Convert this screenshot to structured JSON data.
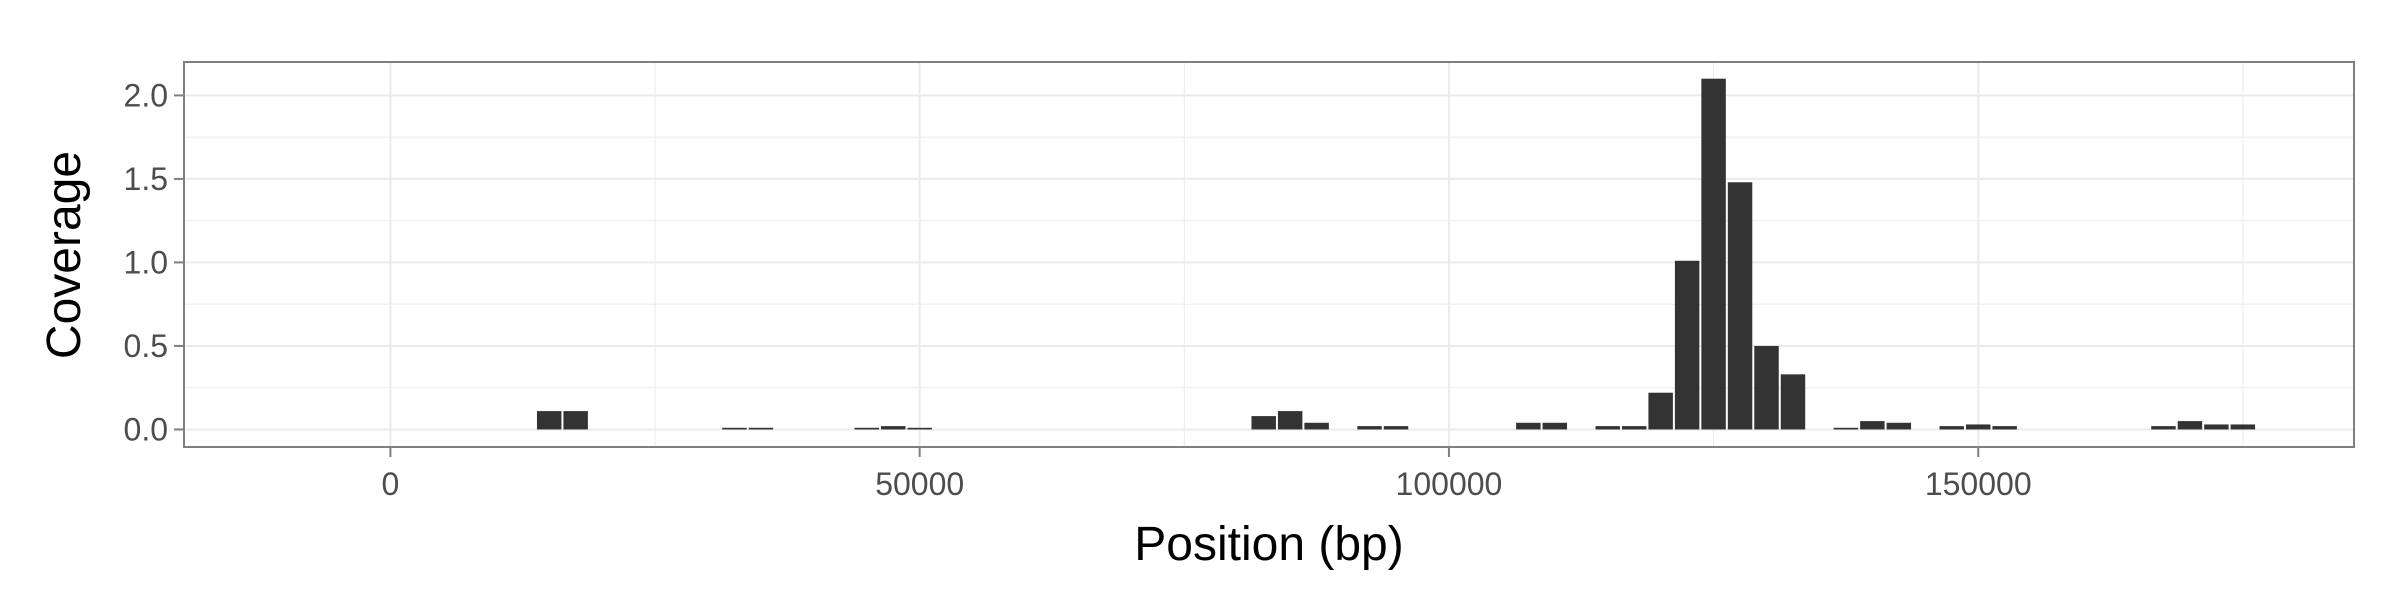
{
  "chart_data": {
    "type": "bar",
    "title": "",
    "xlabel": "Position (bp)",
    "ylabel": "Coverage",
    "xlim": [
      -19500,
      185500
    ],
    "ylim": [
      -0.105,
      2.2
    ],
    "x_ticks": [
      0,
      50000,
      100000,
      150000
    ],
    "x_tick_labels": [
      "0",
      "50000",
      "100000",
      "150000"
    ],
    "y_ticks": [
      0,
      0.5,
      1.0,
      1.5,
      2.0
    ],
    "y_tick_labels": [
      "0.0",
      "0.5",
      "1.0",
      "1.5",
      "2.0"
    ],
    "grid": true,
    "legend": "none",
    "bin_width": 2500,
    "colors": {
      "bar": "#333333",
      "panel": "#ffffff",
      "grid": "#ebebeb",
      "border": "#7f7f7f"
    },
    "series": [
      {
        "x": [
          15000,
          17500,
          32500,
          35000,
          45000,
          47500,
          50000,
          82500,
          85000,
          87500,
          92500,
          95000,
          107500,
          110000,
          115000,
          117500,
          120000,
          122500,
          125000,
          127500,
          130000,
          132500,
          137500,
          140000,
          142500,
          147500,
          150000,
          152500,
          167500,
          170000,
          172500,
          175000
        ],
        "values": [
          0.11,
          0.11,
          0.01,
          0.01,
          0.01,
          0.02,
          0.01,
          0.08,
          0.11,
          0.04,
          0.02,
          0.02,
          0.04,
          0.04,
          0.02,
          0.02,
          0.22,
          1.01,
          2.1,
          1.48,
          0.5,
          0.33,
          0.01,
          0.05,
          0.04,
          0.02,
          0.03,
          0.02,
          0.02,
          0.05,
          0.03,
          0.03
        ]
      }
    ]
  }
}
